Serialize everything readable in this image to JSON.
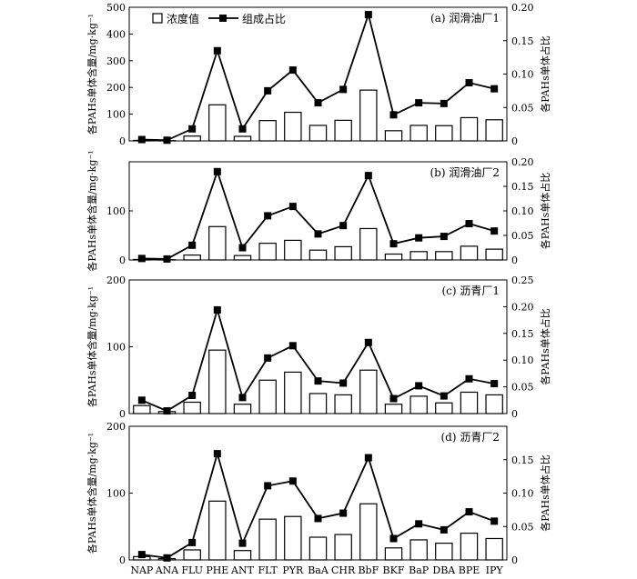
{
  "chart_data": {
    "type": "bar",
    "categories": [
      "NAP",
      "ANA",
      "FLU",
      "PHE",
      "ANT",
      "FLT",
      "PYR",
      "BaA",
      "CHR",
      "BbF",
      "BKF",
      "BaP",
      "DBA",
      "BPE",
      "IPY"
    ],
    "legend": {
      "bar_label": "浓度值",
      "line_label": "组成占比"
    },
    "left_ylabel": "各PAHs单体含量/mg·kg⁻¹",
    "right_ylabel": "各PAHs单体占比",
    "panels": [
      {
        "title": "(a) 润滑油厂1",
        "ylim": [
          0,
          500
        ],
        "yticks": [
          0,
          100,
          200,
          300,
          400,
          500
        ],
        "y2lim": [
          0,
          0.2
        ],
        "y2ticks": [
          "0",
          "0.05",
          "0.10",
          "0.15",
          "0.20"
        ],
        "show_legend": true,
        "bar_values": [
          2,
          1,
          18,
          135,
          17,
          76,
          107,
          58,
          77,
          190,
          38,
          58,
          57,
          87,
          79
        ],
        "line_values": [
          0.002,
          0.001,
          0.018,
          0.135,
          0.018,
          0.075,
          0.106,
          0.057,
          0.077,
          0.189,
          0.039,
          0.057,
          0.056,
          0.087,
          0.078
        ]
      },
      {
        "title": "(b) 润滑油厂2",
        "ylim": [
          0,
          200
        ],
        "yticks": [
          0,
          100
        ],
        "y2lim": [
          0,
          0.2
        ],
        "y2ticks": [
          "0",
          "0.05",
          "0.10",
          "0.15",
          "0.20"
        ],
        "show_legend": false,
        "bar_values": [
          1,
          0.5,
          10,
          68,
          9,
          34,
          40,
          20,
          27,
          64,
          12,
          17,
          17,
          28,
          22
        ],
        "line_values": [
          0.003,
          0.002,
          0.03,
          0.18,
          0.025,
          0.09,
          0.109,
          0.053,
          0.07,
          0.172,
          0.033,
          0.045,
          0.048,
          0.074,
          0.059
        ]
      },
      {
        "title": "(c) 沥青厂1",
        "ylim": [
          0,
          200
        ],
        "yticks": [
          0,
          100,
          200
        ],
        "y2lim": [
          0,
          0.25
        ],
        "y2ticks": [
          "0",
          "0.05",
          "0.10",
          "0.15",
          "0.20",
          "0.25"
        ],
        "show_legend": false,
        "bar_values": [
          12,
          3,
          17,
          95,
          14,
          50,
          62,
          30,
          28,
          65,
          14,
          26,
          16,
          32,
          28
        ],
        "line_values": [
          0.025,
          0.005,
          0.034,
          0.194,
          0.03,
          0.104,
          0.127,
          0.061,
          0.057,
          0.133,
          0.028,
          0.052,
          0.033,
          0.065,
          0.056
        ]
      },
      {
        "title": "(d) 沥青厂2",
        "ylim": [
          0,
          200
        ],
        "yticks": [
          0,
          100,
          200
        ],
        "y2lim": [
          0,
          0.2
        ],
        "y2ticks": [
          "0",
          "0.05",
          "0.10",
          "0.15"
        ],
        "show_legend": false,
        "bar_values": [
          5,
          2,
          15,
          88,
          14,
          61,
          65,
          34,
          38,
          84,
          18,
          30,
          25,
          40,
          32
        ],
        "line_values": [
          0.008,
          0.003,
          0.026,
          0.159,
          0.025,
          0.111,
          0.118,
          0.062,
          0.07,
          0.153,
          0.032,
          0.054,
          0.045,
          0.072,
          0.058
        ]
      }
    ]
  }
}
